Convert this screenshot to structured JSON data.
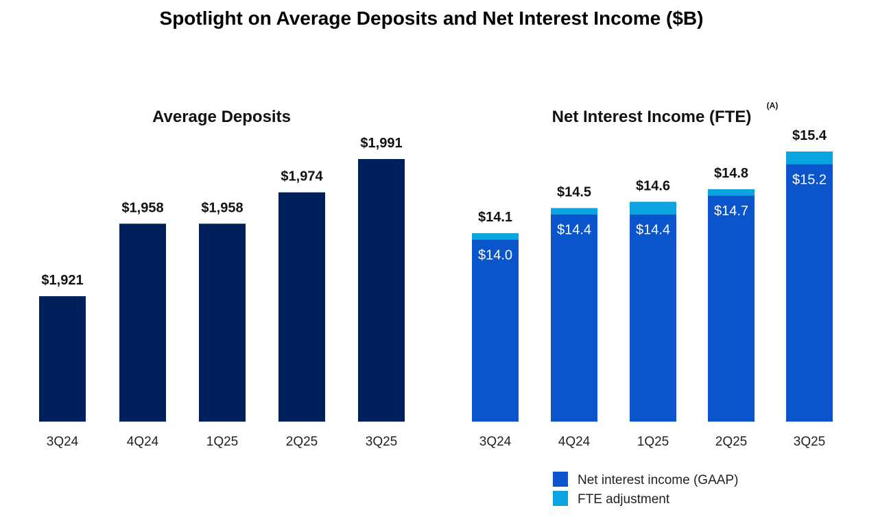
{
  "title": "Spotlight on Average Deposits and Net Interest Income ($B)",
  "colors": {
    "deposits": "#00205b",
    "nii_gaap": "#0a55cc",
    "fte": "#0aa5e0"
  },
  "chart_data": [
    {
      "type": "bar",
      "title": "Average Deposits",
      "categories": [
        "3Q24",
        "4Q24",
        "1Q25",
        "2Q25",
        "3Q25"
      ],
      "values": [
        1921,
        1958,
        1958,
        1974,
        1991
      ],
      "value_labels": [
        "$1,921",
        "$1,958",
        "$1,958",
        "$1,974",
        "$1,991"
      ],
      "xlabel": "",
      "ylabel": ""
    },
    {
      "type": "bar",
      "stacked": true,
      "title": "Net Interest Income (FTE)",
      "title_superscript": "(A)",
      "categories": [
        "3Q24",
        "4Q24",
        "1Q25",
        "2Q25",
        "3Q25"
      ],
      "series": [
        {
          "name": "Net interest income (GAAP)",
          "values": [
            14.0,
            14.4,
            14.4,
            14.7,
            15.2
          ],
          "labels": [
            "$14.0",
            "$14.4",
            "$14.4",
            "$14.7",
            "$15.2"
          ]
        },
        {
          "name": "FTE adjustment",
          "values": [
            0.1,
            0.1,
            0.2,
            0.1,
            0.2
          ]
        }
      ],
      "totals": [
        14.1,
        14.5,
        14.6,
        14.8,
        15.4
      ],
      "total_labels": [
        "$14.1",
        "$14.5",
        "$14.6",
        "$14.8",
        "$15.4"
      ],
      "legend_position": "bottom-right",
      "xlabel": "",
      "ylabel": ""
    }
  ]
}
